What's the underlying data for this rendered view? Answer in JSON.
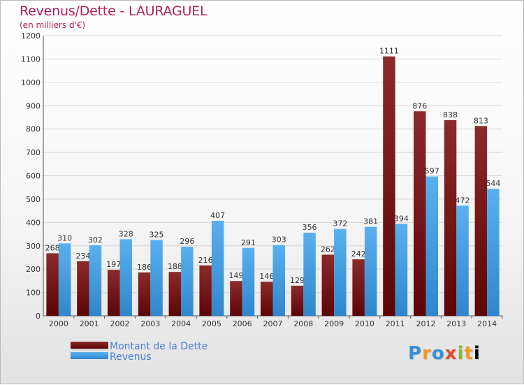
{
  "chart_data": {
    "type": "bar",
    "title": "Revenus/Dette - LAURAGUEL",
    "subtitle": "(en milliers d'€)",
    "categories": [
      "2000",
      "2001",
      "2002",
      "2003",
      "2004",
      "2005",
      "2006",
      "2007",
      "2008",
      "2009",
      "2010",
      "2011",
      "2012",
      "2013",
      "2014"
    ],
    "series": [
      {
        "name": "Montant de la Dette",
        "color": "#7a1010",
        "values": [
          268,
          234,
          197,
          186,
          188,
          216,
          149,
          146,
          129,
          262,
          242,
          1111,
          876,
          838,
          813
        ]
      },
      {
        "name": "Revenus",
        "color": "#4aa3e6",
        "values": [
          310,
          302,
          328,
          325,
          296,
          407,
          291,
          303,
          356,
          372,
          381,
          394,
          597,
          472,
          544
        ]
      }
    ],
    "ylim": [
      0,
      1200
    ],
    "yticks": [
      0,
      100,
      200,
      300,
      400,
      500,
      600,
      700,
      800,
      900,
      1000,
      1100,
      1200
    ],
    "grid": "horizontal",
    "legend_position": "bottom-left"
  },
  "brand": {
    "logo_letters": [
      "P",
      "r",
      "o",
      "x",
      "i",
      "t",
      "i"
    ]
  }
}
